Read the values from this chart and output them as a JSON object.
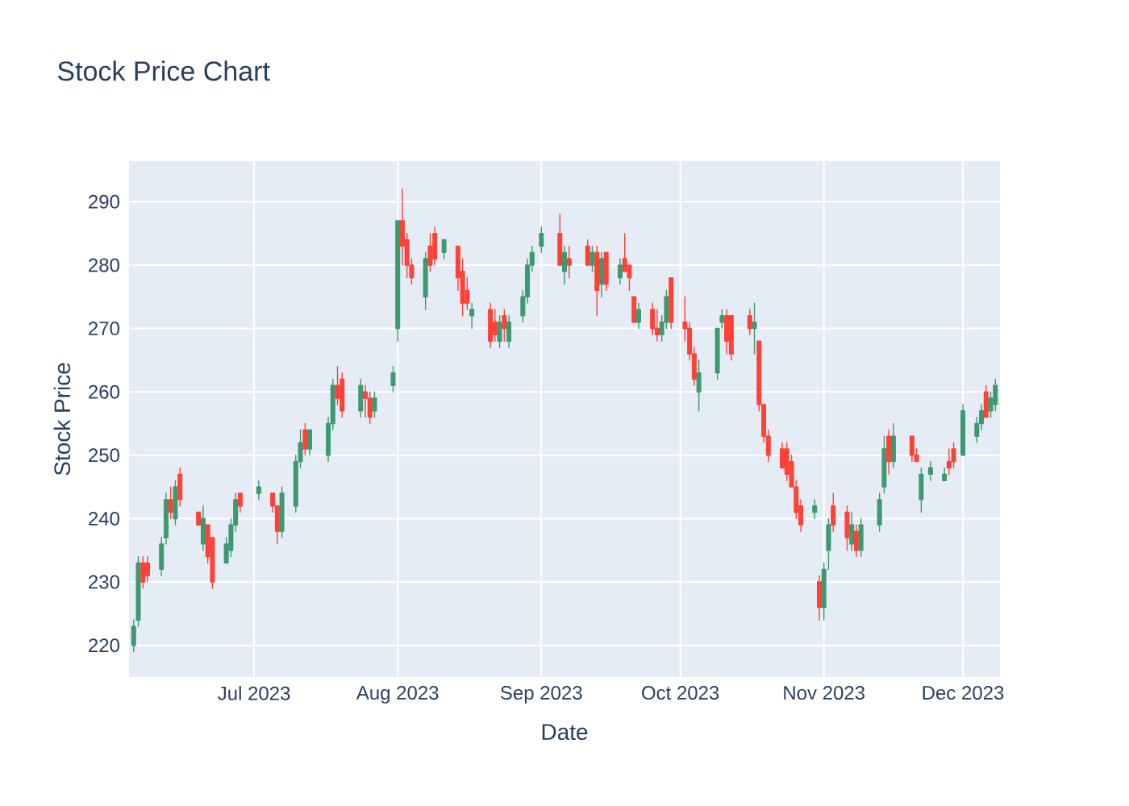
{
  "chart_data": {
    "type": "candlestick",
    "title": "Stock Price Chart",
    "xlabel": "Date",
    "ylabel": "Stock Price",
    "x": [
      "2023-06-05",
      "2023-06-06",
      "2023-06-07",
      "2023-06-08",
      "2023-06-11",
      "2023-06-12",
      "2023-06-13",
      "2023-06-14",
      "2023-06-15",
      "2023-06-19",
      "2023-06-20",
      "2023-06-21",
      "2023-06-22",
      "2023-06-25",
      "2023-06-26",
      "2023-06-27",
      "2023-06-28",
      "2023-07-02",
      "2023-07-05",
      "2023-07-06",
      "2023-07-07",
      "2023-07-10",
      "2023-07-11",
      "2023-07-12",
      "2023-07-13",
      "2023-07-17",
      "2023-07-18",
      "2023-07-19",
      "2023-07-20",
      "2023-07-24",
      "2023-07-25",
      "2023-07-26",
      "2023-07-27",
      "2023-07-31",
      "2023-08-01",
      "2023-08-02",
      "2023-08-03",
      "2023-08-04",
      "2023-08-07",
      "2023-08-08",
      "2023-08-09",
      "2023-08-11",
      "2023-08-14",
      "2023-08-15",
      "2023-08-16",
      "2023-08-17",
      "2023-08-21",
      "2023-08-22",
      "2023-08-23",
      "2023-08-24",
      "2023-08-25",
      "2023-08-28",
      "2023-08-29",
      "2023-08-30",
      "2023-09-01",
      "2023-09-05",
      "2023-09-06",
      "2023-09-07",
      "2023-09-11",
      "2023-09-12",
      "2023-09-13",
      "2023-09-14",
      "2023-09-15",
      "2023-09-18",
      "2023-09-19",
      "2023-09-20",
      "2023-09-21",
      "2023-09-22",
      "2023-09-25",
      "2023-09-26",
      "2023-09-27",
      "2023-09-28",
      "2023-09-29",
      "2023-10-02",
      "2023-10-03",
      "2023-10-04",
      "2023-10-05",
      "2023-10-09",
      "2023-10-10",
      "2023-10-11",
      "2023-10-12",
      "2023-10-16",
      "2023-10-17",
      "2023-10-18",
      "2023-10-19",
      "2023-10-20",
      "2023-10-23",
      "2023-10-24",
      "2023-10-25",
      "2023-10-26",
      "2023-10-27",
      "2023-10-30",
      "2023-10-31",
      "2023-11-01",
      "2023-11-02",
      "2023-11-03",
      "2023-11-06",
      "2023-11-07",
      "2023-11-08",
      "2023-11-09",
      "2023-11-13",
      "2023-11-14",
      "2023-11-15",
      "2023-11-16",
      "2023-11-20",
      "2023-11-21",
      "2023-11-22",
      "2023-11-24",
      "2023-11-27",
      "2023-11-28",
      "2023-11-29",
      "2023-12-01",
      "2023-12-04",
      "2023-12-05",
      "2023-12-06",
      "2023-12-07",
      "2023-12-08"
    ],
    "ohlc": [
      [
        220,
        224,
        219,
        223
      ],
      [
        224,
        234,
        223,
        233
      ],
      [
        233,
        234,
        229,
        230
      ],
      [
        233,
        234,
        230,
        231
      ],
      [
        232,
        237,
        231,
        236
      ],
      [
        237,
        244,
        236,
        243
      ],
      [
        243,
        245,
        240,
        241
      ],
      [
        240,
        246,
        239,
        245
      ],
      [
        247,
        248,
        242,
        243
      ],
      [
        241,
        241,
        239,
        239
      ],
      [
        236,
        242,
        235,
        240
      ],
      [
        239,
        239,
        233,
        234
      ],
      [
        237,
        237,
        229,
        230
      ],
      [
        233,
        237,
        233,
        236
      ],
      [
        235,
        240,
        234,
        239
      ],
      [
        239,
        244,
        238,
        243
      ],
      [
        244,
        244,
        241,
        242
      ],
      [
        244,
        246,
        243,
        245
      ],
      [
        244,
        244,
        241,
        242
      ],
      [
        242,
        242,
        236,
        238
      ],
      [
        238,
        245,
        237,
        244
      ],
      [
        242,
        250,
        241,
        249
      ],
      [
        249,
        254,
        248,
        252
      ],
      [
        254,
        255,
        250,
        251
      ],
      [
        251,
        254,
        250,
        254
      ],
      [
        250,
        256,
        249,
        255
      ],
      [
        255,
        262,
        254,
        261
      ],
      [
        261,
        264,
        258,
        259
      ],
      [
        262,
        263,
        256,
        257
      ],
      [
        257,
        262,
        256,
        261
      ],
      [
        260,
        261,
        256,
        259
      ],
      [
        259,
        260,
        255,
        256
      ],
      [
        257,
        260,
        256,
        259
      ],
      [
        261,
        264,
        260,
        263
      ],
      [
        270,
        287,
        268,
        287
      ],
      [
        287,
        292,
        280,
        283
      ],
      [
        284,
        285,
        278,
        280
      ],
      [
        280,
        281,
        277,
        278
      ],
      [
        275,
        282,
        273,
        281
      ],
      [
        283,
        285,
        279,
        280
      ],
      [
        285,
        286,
        280,
        281
      ],
      [
        282,
        284,
        281,
        284
      ],
      [
        283,
        283,
        276,
        278
      ],
      [
        279,
        281,
        272,
        274
      ],
      [
        276,
        278,
        273,
        274
      ],
      [
        272,
        274,
        270,
        273
      ],
      [
        273,
        274,
        267,
        268
      ],
      [
        271,
        273,
        268,
        269
      ],
      [
        268,
        272,
        267,
        271
      ],
      [
        272,
        273,
        268,
        270
      ],
      [
        268,
        272,
        267,
        271
      ],
      [
        272,
        276,
        271,
        275
      ],
      [
        275,
        281,
        274,
        280
      ],
      [
        280,
        283,
        279,
        282
      ],
      [
        283,
        286,
        282,
        285
      ],
      [
        285,
        288,
        280,
        280
      ],
      [
        279,
        283,
        277,
        282
      ],
      [
        281,
        283,
        278,
        280
      ],
      [
        283,
        284,
        280,
        280
      ],
      [
        280,
        283,
        279,
        282
      ],
      [
        282,
        283,
        272,
        276
      ],
      [
        277,
        282,
        275,
        281
      ],
      [
        282,
        282,
        276,
        277
      ],
      [
        278,
        281,
        277,
        280
      ],
      [
        281,
        285,
        279,
        279
      ],
      [
        280,
        280,
        276,
        278
      ],
      [
        275,
        275,
        271,
        271
      ],
      [
        271,
        274,
        270,
        273
      ],
      [
        273,
        274,
        269,
        270
      ],
      [
        270,
        273,
        268,
        269
      ],
      [
        269,
        272,
        268,
        271
      ],
      [
        271,
        276,
        270,
        275
      ],
      [
        278,
        278,
        270,
        271
      ],
      [
        271,
        275,
        268,
        270
      ],
      [
        270,
        271,
        265,
        266
      ],
      [
        266,
        267,
        261,
        262
      ],
      [
        260,
        265,
        257,
        263
      ],
      [
        263,
        270,
        262,
        270
      ],
      [
        271,
        273,
        270,
        272
      ],
      [
        272,
        273,
        266,
        268
      ],
      [
        272,
        272,
        265,
        266
      ],
      [
        272,
        273,
        269,
        270
      ],
      [
        270,
        274,
        266,
        271
      ],
      [
        268,
        268,
        257,
        258
      ],
      [
        258,
        258,
        252,
        253
      ],
      [
        253,
        254,
        249,
        250
      ],
      [
        251,
        252,
        248,
        248
      ],
      [
        251,
        252,
        246,
        247
      ],
      [
        249,
        250,
        245,
        245
      ],
      [
        245,
        246,
        240,
        241
      ],
      [
        242,
        243,
        238,
        239
      ],
      [
        241,
        243,
        240,
        242
      ],
      [
        230,
        231,
        224,
        226
      ],
      [
        226,
        233,
        224,
        232
      ],
      [
        235,
        240,
        232,
        239
      ],
      [
        242,
        244,
        238,
        239
      ],
      [
        241,
        242,
        235,
        237
      ],
      [
        236,
        241,
        235,
        239
      ],
      [
        238,
        239,
        234,
        235
      ],
      [
        235,
        240,
        234,
        239
      ],
      [
        239,
        244,
        238,
        243
      ],
      [
        245,
        253,
        244,
        251
      ],
      [
        253,
        254,
        247,
        249
      ],
      [
        249,
        255,
        248,
        253
      ],
      [
        253,
        253,
        249,
        250
      ],
      [
        250,
        251,
        249,
        249
      ],
      [
        243,
        248,
        241,
        247
      ],
      [
        247,
        249,
        246,
        248
      ],
      [
        246,
        248,
        246,
        247
      ],
      [
        249,
        251,
        247,
        248
      ],
      [
        251,
        252,
        248,
        249
      ],
      [
        250,
        258,
        250,
        257
      ],
      [
        253,
        256,
        252,
        255
      ],
      [
        255,
        258,
        254,
        257
      ],
      [
        260,
        261,
        256,
        256
      ],
      [
        257,
        260,
        256,
        259
      ],
      [
        258,
        262,
        257,
        261
      ]
    ],
    "colors": [
      "#3d9970",
      "#3d9970",
      "#ff4136",
      "#ff4136",
      "#3d9970",
      "#3d9970",
      "#ff4136",
      "#3d9970",
      "#ff4136",
      "#ff4136",
      "#3d9970",
      "#ff4136",
      "#ff4136",
      "#3d9970",
      "#3d9970",
      "#3d9970",
      "#ff4136",
      "#3d9970",
      "#ff4136",
      "#ff4136",
      "#3d9970",
      "#3d9970",
      "#3d9970",
      "#ff4136",
      "#3d9970",
      "#3d9970",
      "#3d9970",
      "#ff4136",
      "#ff4136",
      "#3d9970",
      "#ff4136",
      "#ff4136",
      "#3d9970",
      "#3d9970",
      "#3d9970",
      "#ff4136",
      "#ff4136",
      "#ff4136",
      "#3d9970",
      "#ff4136",
      "#ff4136",
      "#3d9970",
      "#ff4136",
      "#ff4136",
      "#ff4136",
      "#3d9970",
      "#ff4136",
      "#ff4136",
      "#3d9970",
      "#ff4136",
      "#3d9970",
      "#3d9970",
      "#3d9970",
      "#3d9970",
      "#3d9970",
      "#ff4136",
      "#3d9970",
      "#ff4136",
      "#ff4136",
      "#3d9970",
      "#ff4136",
      "#3d9970",
      "#ff4136",
      "#3d9970",
      "#ff4136",
      "#ff4136",
      "#ff4136",
      "#3d9970",
      "#ff4136",
      "#ff4136",
      "#3d9970",
      "#3d9970",
      "#ff4136",
      "#ff4136",
      "#ff4136",
      "#ff4136",
      "#3d9970",
      "#3d9970",
      "#3d9970",
      "#ff4136",
      "#ff4136",
      "#ff4136",
      "#3d9970",
      "#ff4136",
      "#ff4136",
      "#ff4136",
      "#ff4136",
      "#ff4136",
      "#ff4136",
      "#ff4136",
      "#ff4136",
      "#3d9970",
      "#ff4136",
      "#3d9970",
      "#3d9970",
      "#ff4136",
      "#ff4136",
      "#3d9970",
      "#ff4136",
      "#3d9970",
      "#3d9970",
      "#3d9970",
      "#ff4136",
      "#3d9970",
      "#ff4136",
      "#ff4136",
      "#3d9970",
      "#3d9970",
      "#3d9970",
      "#ff4136",
      "#ff4136",
      "#3d9970",
      "#3d9970",
      "#3d9970",
      "#ff4136",
      "#3d9970",
      "#3d9970"
    ],
    "xlim": [
      "2023-06-04",
      "2023-12-09"
    ],
    "ylim": [
      215,
      296.4
    ],
    "xticks": [
      {
        "value": "2023-07-01",
        "label": "Jul 2023"
      },
      {
        "value": "2023-08-01",
        "label": "Aug 2023"
      },
      {
        "value": "2023-09-01",
        "label": "Sep 2023"
      },
      {
        "value": "2023-10-01",
        "label": "Oct 2023"
      },
      {
        "value": "2023-11-01",
        "label": "Nov 2023"
      },
      {
        "value": "2023-12-01",
        "label": "Dec 2023"
      }
    ],
    "yticks": [
      220,
      230,
      240,
      250,
      260,
      270,
      280,
      290
    ],
    "grid": true
  }
}
